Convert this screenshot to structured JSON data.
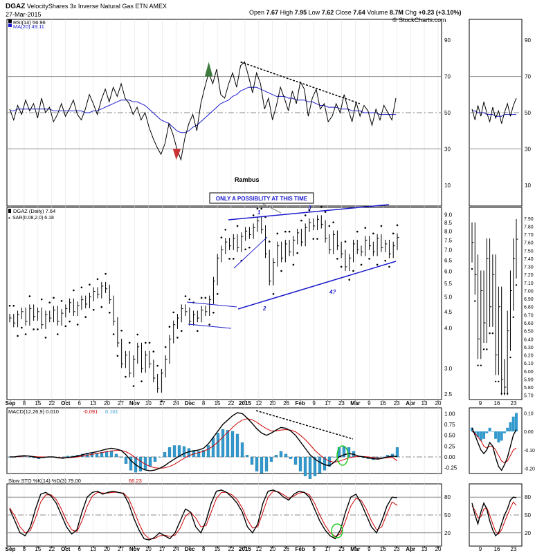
{
  "header": {
    "ticker": "DGAZ",
    "name": "VelocityShares 3x Inverse Natural Gas ETN",
    "exchange": "AMEX",
    "date": "27-Mar-2015",
    "open_label": "Open",
    "open": "7.67",
    "high_label": "High",
    "high": "7.95",
    "low_label": "Low",
    "low": "7.62",
    "close_label": "Close",
    "close": "7.64",
    "volume_label": "Volume",
    "volume": "8.7M",
    "change_label": "Chg",
    "change": "+0.23 (+3.10%)",
    "credit": "© StockCharts.com"
  },
  "watermark": "Rambus",
  "colors": {
    "price": "#000000",
    "blue": "#1a1acc",
    "red": "#cc0000",
    "hist": "#3399cc",
    "green": "#22cc22",
    "ob_fill": "#3d7a3d",
    "os_fill": "#cc3333",
    "grid": "#dddddd",
    "refline": "#888888"
  },
  "chart_data": [
    {
      "type": "line",
      "panel": "rsi",
      "legend": [
        "RSI(14) 56.96",
        "MA(20) 49.11"
      ],
      "yticks": [
        90,
        70,
        50,
        30,
        10
      ],
      "ylim": [
        0,
        100
      ],
      "series": [
        {
          "name": "RSI(14) 56.96",
          "values": [
            52,
            46,
            54,
            49,
            57,
            51,
            55,
            47,
            58,
            50,
            53,
            45,
            49,
            55,
            48,
            52,
            57,
            49,
            46,
            52,
            60,
            55,
            49,
            57,
            63,
            56,
            64,
            59,
            66,
            58,
            55,
            49,
            53,
            46,
            50,
            42,
            36,
            31,
            27,
            33,
            44,
            38,
            30,
            24,
            36,
            44,
            49,
            40,
            55,
            64,
            72,
            66,
            74,
            60,
            58,
            66,
            72,
            64,
            76,
            78,
            70,
            61,
            72,
            66,
            52,
            58,
            46,
            54,
            64,
            58,
            51,
            62,
            55,
            67,
            63,
            48,
            58,
            63,
            52,
            55,
            45,
            48,
            55,
            50,
            60,
            52,
            45,
            56,
            48,
            54,
            51,
            43,
            52,
            46,
            54,
            50,
            46,
            58
          ]
        },
        {
          "name": "MA(20) 49.11",
          "values": [
            51,
            51,
            52,
            52,
            52,
            52,
            52,
            52,
            52,
            52,
            52,
            51,
            51,
            51,
            51,
            51,
            51,
            51,
            51,
            50,
            50,
            51,
            51,
            52,
            53,
            54,
            55,
            56,
            57,
            57,
            57,
            56,
            56,
            55,
            54,
            52,
            50,
            48,
            46,
            45,
            44,
            42,
            40,
            39,
            39,
            40,
            42,
            43,
            45,
            47,
            49,
            51,
            53,
            55,
            56,
            57,
            59,
            60,
            62,
            63,
            64,
            64,
            64,
            63,
            62,
            61,
            60,
            59,
            59,
            59,
            58,
            58,
            57,
            57,
            57,
            56,
            56,
            55,
            54,
            54,
            53,
            53,
            53,
            52,
            52,
            52,
            51,
            51,
            51,
            50,
            50,
            50,
            50,
            49,
            49,
            49,
            49,
            49
          ]
        }
      ],
      "zoom_series": [
        {
          "name": "RSI(14) 56.96",
          "values": [
            52,
            46,
            54,
            48,
            56,
            50,
            45,
            53,
            47,
            51,
            44,
            50,
            55,
            48,
            54,
            58
          ]
        },
        {
          "name": "MA(20) 49.11",
          "values": [
            51,
            51,
            50,
            50,
            50,
            49,
            49,
            49,
            48,
            48,
            48,
            49,
            49,
            49,
            49,
            49
          ]
        }
      ]
    },
    {
      "type": "bar",
      "panel": "price",
      "legend": [
        "DGAZ (Daily) 7.64",
        "SAR(0.08,2.0) 6.18"
      ],
      "yticks": [
        9.0,
        8.5,
        8.0,
        7.5,
        7.0,
        6.5,
        6.0,
        5.5,
        5.0,
        4.5,
        4.0,
        3.0,
        2.5
      ],
      "yscale": "log",
      "closes": [
        4.3,
        4.15,
        4.4,
        4.5,
        4.2,
        4.6,
        4.35,
        4.5,
        4.1,
        4.4,
        4.3,
        4.55,
        4.2,
        4.45,
        4.6,
        4.8,
        4.5,
        4.7,
        4.9,
        4.75,
        5.0,
        5.2,
        5.1,
        5.4,
        5.3,
        4.9,
        4.2,
        3.6,
        3.1,
        3.3,
        2.9,
        3.2,
        3.5,
        3.0,
        3.3,
        3.1,
        2.8,
        2.6,
        2.9,
        3.2,
        3.7,
        4.1,
        4.3,
        4.6,
        4.5,
        4.2,
        4.4,
        4.3,
        4.55,
        4.5,
        4.9,
        5.6,
        6.6,
        7.0,
        7.4,
        7.2,
        7.6,
        7.1,
        7.7,
        8.0,
        7.8,
        8.2,
        8.6,
        8.1,
        6.8,
        5.6,
        6.4,
        7.2,
        6.6,
        7.3,
        6.9,
        7.5,
        7.9,
        7.4,
        8.2,
        8.5,
        8.3,
        8.7,
        8.4,
        7.6,
        7.0,
        7.8,
        7.2,
        6.8,
        6.2,
        6.6,
        7.3,
        7.0,
        6.9,
        7.5,
        7.2,
        6.9,
        7.6,
        7.1,
        7.3,
        6.8,
        7.2,
        7.64
      ],
      "sar_note": "dots above/below price",
      "annotations": [
        "ONLY A POSSIBLITY AT THIS TIME",
        "1",
        "2",
        "3",
        "4?"
      ],
      "zoom_closes": [
        7.6,
        7.2,
        6.4,
        7.0,
        6.6,
        7.4,
        6.8,
        7.2,
        6.2,
        6.8,
        5.9,
        5.8,
        6.5,
        7.0,
        7.4,
        7.64
      ],
      "zoom_yticks": [
        7.9,
        7.8,
        7.7,
        7.6,
        7.5,
        7.4,
        7.3,
        7.2,
        7.1,
        7.0,
        6.9,
        6.8,
        6.7,
        6.6,
        6.5,
        6.4,
        6.3,
        6.2,
        6.1,
        6.0,
        5.9,
        5.8,
        5.7
      ]
    },
    {
      "type": "line",
      "panel": "macd",
      "legend": [
        "MACD(12,26,9) 0.010",
        "-0.091",
        "0.101"
      ],
      "yticks": [
        1.0,
        0.75,
        0.5,
        0.25,
        0.0,
        -0.25
      ],
      "ylim": [
        -0.35,
        1.1
      ],
      "series": [
        {
          "name": "MACD(12,26,9) 0.010",
          "values": [
            0.0,
            0.0,
            0.02,
            0.03,
            0.02,
            0.0,
            -0.02,
            -0.01,
            0.0,
            0.0,
            -0.02,
            -0.03,
            -0.01,
            0.0,
            0.02,
            0.05,
            0.08,
            0.1,
            0.12,
            0.15,
            0.18,
            0.2,
            0.18,
            0.15,
            0.05,
            -0.08,
            -0.18,
            -0.25,
            -0.3,
            -0.32,
            -0.3,
            -0.26,
            -0.2,
            -0.12,
            -0.05,
            0.02,
            0.08,
            0.12,
            0.14,
            0.16,
            0.2,
            0.3,
            0.45,
            0.6,
            0.75,
            0.85,
            0.95,
            1.02,
            1.0,
            0.9,
            0.78,
            0.65,
            0.55,
            0.5,
            0.55,
            0.62,
            0.68,
            0.66,
            0.6,
            0.5,
            0.35,
            0.2,
            0.05,
            -0.05,
            -0.12,
            -0.18,
            -0.2,
            -0.12,
            0.0,
            0.05,
            0.08,
            0.06,
            0.02,
            0.0,
            -0.02,
            -0.04,
            -0.05,
            -0.03,
            0.0,
            0.02,
            0.01
          ]
        },
        {
          "name": "signal -0.091",
          "values": [
            0.0,
            0.0,
            0.01,
            0.02,
            0.02,
            0.01,
            0.0,
            0.0,
            0.0,
            0.0,
            -0.01,
            -0.02,
            -0.02,
            -0.01,
            0.0,
            0.02,
            0.04,
            0.06,
            0.08,
            0.1,
            0.12,
            0.14,
            0.15,
            0.15,
            0.12,
            0.06,
            -0.02,
            -0.1,
            -0.17,
            -0.22,
            -0.25,
            -0.26,
            -0.25,
            -0.22,
            -0.17,
            -0.1,
            -0.03,
            0.03,
            0.07,
            0.1,
            0.13,
            0.18,
            0.25,
            0.35,
            0.46,
            0.57,
            0.68,
            0.78,
            0.85,
            0.88,
            0.86,
            0.8,
            0.72,
            0.65,
            0.6,
            0.6,
            0.62,
            0.63,
            0.62,
            0.58,
            0.5,
            0.4,
            0.28,
            0.15,
            0.05,
            -0.04,
            -0.1,
            -0.12,
            -0.1,
            -0.06,
            -0.02,
            0.0,
            0.01,
            0.01,
            0.0,
            -0.01,
            -0.03,
            -0.03,
            -0.02,
            -0.01,
            -0.09
          ]
        },
        {
          "name": "histogram 0.101",
          "values": [
            0.0,
            0.0,
            0.01,
            0.01,
            0.0,
            -0.01,
            -0.02,
            -0.01,
            0.0,
            0.0,
            -0.01,
            -0.01,
            0.01,
            0.01,
            0.02,
            0.03,
            0.04,
            0.04,
            0.04,
            0.05,
            0.06,
            0.06,
            0.03,
            0.0,
            -0.07,
            -0.14,
            -0.16,
            -0.15,
            -0.13,
            -0.1,
            -0.05,
            0.0,
            0.05,
            0.1,
            0.12,
            0.12,
            0.11,
            0.09,
            0.07,
            0.06,
            0.07,
            0.12,
            0.2,
            0.25,
            0.29,
            0.28,
            0.27,
            0.24,
            0.15,
            0.02,
            -0.08,
            -0.15,
            -0.17,
            -0.15,
            -0.05,
            0.02,
            0.06,
            0.03,
            -0.02,
            -0.08,
            -0.15,
            -0.2,
            -0.23,
            -0.2,
            -0.17,
            -0.14,
            -0.1,
            0.0,
            0.1,
            0.11,
            0.1,
            0.06,
            0.01,
            -0.01,
            -0.02,
            -0.03,
            -0.02,
            0.0,
            0.02,
            0.03,
            0.1
          ]
        }
      ]
    },
    {
      "type": "line",
      "panel": "stoch",
      "legend": [
        "Slow STO %K(14) %D(3) 79.00",
        "66.23"
      ],
      "yticks": [
        80,
        50,
        20
      ],
      "ylim": [
        0,
        100
      ],
      "series": [
        {
          "name": "%K 79.00",
          "values": [
            60,
            40,
            20,
            15,
            30,
            60,
            85,
            88,
            82,
            70,
            50,
            30,
            18,
            25,
            55,
            80,
            88,
            90,
            85,
            88,
            90,
            88,
            86,
            70,
            45,
            25,
            10,
            8,
            12,
            20,
            15,
            10,
            20,
            40,
            60,
            55,
            30,
            20,
            40,
            70,
            90,
            92,
            88,
            80,
            70,
            55,
            30,
            20,
            35,
            70,
            90,
            92,
            88,
            80,
            75,
            85,
            90,
            88,
            80,
            60,
            40,
            25,
            15,
            10,
            25,
            55,
            80,
            85,
            70,
            50,
            30,
            20,
            40,
            65,
            80,
            79
          ]
        },
        {
          "name": "%D 66.23",
          "values": [
            62,
            48,
            30,
            20,
            24,
            45,
            72,
            84,
            84,
            76,
            60,
            40,
            25,
            22,
            40,
            65,
            82,
            88,
            87,
            87,
            88,
            88,
            87,
            78,
            58,
            36,
            18,
            10,
            10,
            15,
            16,
            14,
            16,
            28,
            48,
            55,
            45,
            30,
            32,
            55,
            78,
            88,
            88,
            84,
            76,
            62,
            42,
            28,
            30,
            55,
            80,
            90,
            89,
            84,
            78,
            82,
            87,
            88,
            84,
            70,
            50,
            33,
            20,
            14,
            18,
            40,
            65,
            78,
            75,
            60,
            40,
            25,
            30,
            52,
            72,
            66
          ]
        }
      ]
    }
  ],
  "x_axis": {
    "main_labels": [
      "Sep",
      "8",
      "15",
      "22",
      "Oct",
      "6",
      "13",
      "20",
      "27",
      "Nov",
      "10",
      "17",
      "24",
      "Dec",
      "8",
      "15",
      "22",
      "2015",
      "12",
      "20",
      "26",
      "Feb",
      "9",
      "17",
      "23",
      "Mar",
      "9",
      "16",
      "23",
      "Apr",
      "13",
      "20"
    ],
    "zoom_labels": [
      "9",
      "16",
      "23"
    ]
  }
}
